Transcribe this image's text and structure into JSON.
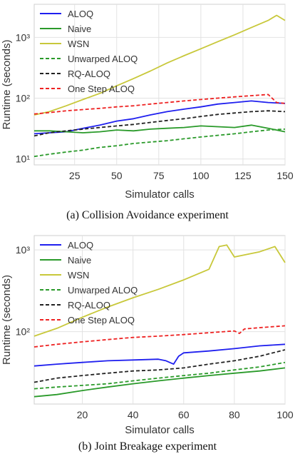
{
  "chart_data": [
    {
      "type": "line",
      "caption": "(a) Collision Avoidance experiment",
      "xlabel": "Simulator calls",
      "ylabel": "Runtime (seconds)",
      "yscale": "log",
      "xlim": [
        1,
        150
      ],
      "ylim": [
        8,
        3500
      ],
      "xticks": [
        25,
        50,
        75,
        100,
        125,
        150
      ],
      "yticks": [
        {
          "value": 10,
          "label": "10¹"
        },
        {
          "value": 100,
          "label": "10²"
        },
        {
          "value": 1000,
          "label": "10³"
        }
      ],
      "grid": true,
      "legend_position": "top-left",
      "series": [
        {
          "name": "ALOQ",
          "color": "#1f1fef",
          "dash": "solid",
          "x": [
            1,
            10,
            20,
            30,
            40,
            50,
            60,
            70,
            80,
            90,
            100,
            110,
            120,
            130,
            140,
            150
          ],
          "y": [
            26,
            27,
            28,
            32,
            36,
            42,
            46,
            53,
            60,
            66,
            72,
            80,
            85,
            90,
            85,
            82
          ]
        },
        {
          "name": "Naive",
          "color": "#2a9a2a",
          "dash": "solid",
          "x": [
            1,
            10,
            20,
            30,
            40,
            50,
            60,
            70,
            80,
            90,
            100,
            110,
            120,
            130,
            140,
            150
          ],
          "y": [
            29,
            29,
            28,
            27,
            28,
            30,
            29,
            31,
            32,
            33,
            35,
            34,
            33,
            36,
            32,
            28
          ]
        },
        {
          "name": "WSN",
          "color": "#c8c83a",
          "dash": "solid",
          "x": [
            1,
            10,
            20,
            30,
            40,
            50,
            60,
            70,
            80,
            90,
            100,
            110,
            120,
            130,
            140,
            145,
            150
          ],
          "y": [
            53,
            60,
            75,
            95,
            120,
            160,
            210,
            280,
            380,
            500,
            650,
            850,
            1100,
            1450,
            1900,
            2300,
            1900
          ]
        },
        {
          "name": "Unwarped ALOQ",
          "color": "#2a9a2a",
          "dash": "dashed",
          "x": [
            1,
            10,
            20,
            30,
            40,
            50,
            60,
            70,
            80,
            90,
            100,
            110,
            120,
            130,
            140,
            150
          ],
          "y": [
            11,
            12,
            13,
            14,
            15.5,
            16.5,
            18,
            19,
            20,
            21.5,
            23,
            24.5,
            26,
            28,
            30,
            31
          ]
        },
        {
          "name": "RQ-ALOQ",
          "color": "#222222",
          "dash": "dashed",
          "x": [
            1,
            10,
            20,
            30,
            40,
            50,
            60,
            70,
            80,
            90,
            100,
            110,
            120,
            130,
            140,
            150
          ],
          "y": [
            24,
            27,
            29,
            31,
            33,
            35,
            37,
            40,
            43,
            46,
            50,
            54,
            57,
            60,
            62,
            60
          ]
        },
        {
          "name": "One Step ALOQ",
          "color": "#ee2222",
          "dash": "dashed",
          "x": [
            1,
            10,
            20,
            30,
            40,
            50,
            60,
            70,
            80,
            90,
            100,
            110,
            120,
            130,
            140,
            145,
            150
          ],
          "y": [
            55,
            58,
            62,
            65,
            68,
            72,
            75,
            80,
            85,
            90,
            95,
            100,
            105,
            110,
            115,
            85,
            82
          ]
        }
      ]
    },
    {
      "type": "line",
      "caption": "(b) Joint Breakage experiment",
      "xlabel": "Simulator calls",
      "ylabel": "Runtime (seconds)",
      "yscale": "log",
      "xlim": [
        1,
        100
      ],
      "ylim": [
        13,
        1500
      ],
      "xticks": [
        20,
        40,
        60,
        80,
        100
      ],
      "yticks": [
        {
          "value": 100,
          "label": "10²"
        },
        {
          "value": 1000,
          "label": "10³"
        }
      ],
      "grid": true,
      "legend_position": "top-left",
      "series": [
        {
          "name": "ALOQ",
          "color": "#1f1fef",
          "dash": "solid",
          "x": [
            1,
            10,
            20,
            30,
            40,
            50,
            53,
            56,
            58,
            60,
            70,
            80,
            90,
            100
          ],
          "y": [
            38,
            40,
            42,
            44,
            45,
            46,
            44,
            40,
            50,
            55,
            58,
            62,
            67,
            70
          ]
        },
        {
          "name": "Naive",
          "color": "#2a9a2a",
          "dash": "solid",
          "x": [
            1,
            10,
            20,
            30,
            40,
            50,
            60,
            70,
            80,
            90,
            100
          ],
          "y": [
            16,
            17,
            19,
            21,
            23,
            25,
            27,
            29,
            31,
            33,
            36
          ]
        },
        {
          "name": "WSN",
          "color": "#c8c83a",
          "dash": "solid",
          "x": [
            1,
            10,
            20,
            30,
            40,
            50,
            60,
            70,
            74,
            77,
            80,
            90,
            96,
            100
          ],
          "y": [
            88,
            110,
            150,
            200,
            260,
            330,
            430,
            580,
            1100,
            1150,
            820,
            950,
            1100,
            700
          ]
        },
        {
          "name": "Unwarped ALOQ",
          "color": "#2a9a2a",
          "dash": "dashed",
          "x": [
            1,
            10,
            20,
            30,
            40,
            50,
            60,
            70,
            80,
            90,
            100
          ],
          "y": [
            20,
            21,
            22,
            23,
            25,
            27,
            29,
            31,
            34,
            37,
            42
          ]
        },
        {
          "name": "RQ-ALOQ",
          "color": "#222222",
          "dash": "dashed",
          "x": [
            1,
            10,
            20,
            30,
            40,
            50,
            60,
            70,
            80,
            90,
            100
          ],
          "y": [
            24,
            27,
            29,
            31,
            33,
            34,
            36,
            40,
            44,
            50,
            60
          ]
        },
        {
          "name": "One Step ALOQ",
          "color": "#ee2222",
          "dash": "dashed",
          "x": [
            1,
            10,
            20,
            30,
            40,
            50,
            60,
            70,
            80,
            82,
            84,
            90,
            100
          ],
          "y": [
            65,
            70,
            75,
            80,
            85,
            88,
            92,
            97,
            102,
            95,
            108,
            112,
            118
          ]
        }
      ]
    }
  ]
}
